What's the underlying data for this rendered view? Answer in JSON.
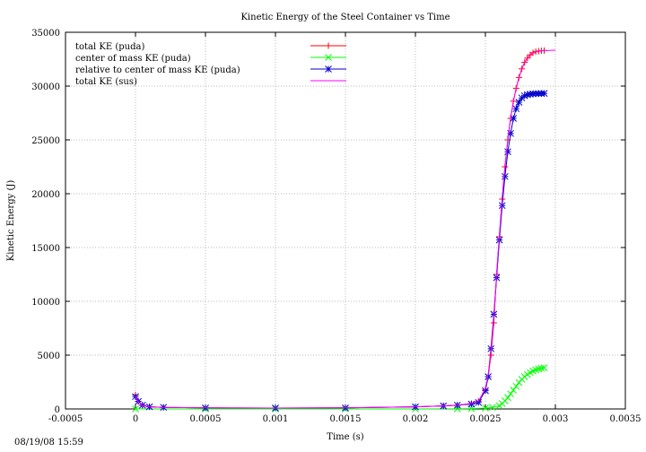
{
  "timestamp": "08/19/08 15:59",
  "chart_data": {
    "type": "line",
    "title": "Kinetic Energy of the Steel Container vs Time",
    "xlabel": "Time (s)",
    "ylabel": "Kinetic Energy (J)",
    "xlim": [
      -0.0005,
      0.0035
    ],
    "ylim": [
      0,
      35000
    ],
    "xticks": [
      "-0.0005",
      "0",
      "0.0005",
      "0.001",
      "0.0015",
      "0.002",
      "0.0025",
      "0.003",
      "0.0035"
    ],
    "yticks": [
      "0",
      "5000",
      "10000",
      "15000",
      "20000",
      "25000",
      "30000",
      "35000"
    ],
    "grid": true,
    "legend_position": "top-left",
    "series": [
      {
        "name": "total KE (puda)",
        "color": "#ff0000",
        "marker": "plus",
        "x": [
          0,
          2e-05,
          5e-05,
          0.0001,
          0.0002,
          0.0005,
          0.001,
          0.0015,
          0.002,
          0.0022,
          0.0023,
          0.0024,
          0.00245,
          0.0025,
          0.00252,
          0.00254,
          0.00256,
          0.00258,
          0.0026,
          0.00262,
          0.00264,
          0.00266,
          0.00268,
          0.0027,
          0.00272,
          0.00274,
          0.00276,
          0.00278,
          0.0028,
          0.00282,
          0.00284,
          0.00286,
          0.00288,
          0.0029,
          0.00292
        ],
        "y": [
          1300,
          700,
          350,
          200,
          150,
          100,
          80,
          100,
          200,
          280,
          350,
          500,
          700,
          1800,
          3000,
          5000,
          8000,
          12500,
          16000,
          19500,
          22500,
          25000,
          27000,
          28600,
          29800,
          30800,
          31600,
          32200,
          32600,
          32900,
          33100,
          33200,
          33250,
          33280,
          33300
        ]
      },
      {
        "name": "center of mass KE (puda)",
        "color": "#00ff00",
        "marker": "cross",
        "x": [
          0,
          0.0005,
          0.001,
          0.0015,
          0.002,
          0.0023,
          0.0024,
          0.0025,
          0.00255,
          0.0026,
          0.00262,
          0.00264,
          0.00266,
          0.00268,
          0.0027,
          0.00272,
          0.00274,
          0.00276,
          0.00278,
          0.0028,
          0.00282,
          0.00284,
          0.00286,
          0.00288,
          0.0029,
          0.00292
        ],
        "y": [
          0,
          0,
          0,
          0,
          0,
          10,
          30,
          80,
          150,
          300,
          500,
          750,
          1050,
          1400,
          1750,
          2100,
          2450,
          2750,
          3000,
          3200,
          3380,
          3520,
          3630,
          3720,
          3780,
          3820
        ]
      },
      {
        "name": "relative to center of mass KE (puda)",
        "color": "#0000cc",
        "marker": "star",
        "x": [
          0,
          2e-05,
          5e-05,
          0.0001,
          0.0002,
          0.0005,
          0.001,
          0.0015,
          0.002,
          0.0022,
          0.0023,
          0.0024,
          0.00245,
          0.0025,
          0.00252,
          0.00254,
          0.00256,
          0.00258,
          0.0026,
          0.00262,
          0.00264,
          0.00266,
          0.00268,
          0.0027,
          0.00272,
          0.00274,
          0.00276,
          0.00278,
          0.0028,
          0.00282,
          0.00284,
          0.00286,
          0.00288,
          0.0029,
          0.00292
        ],
        "y": [
          1150,
          700,
          350,
          200,
          150,
          100,
          80,
          100,
          200,
          280,
          350,
          450,
          600,
          1700,
          3000,
          5600,
          8800,
          12200,
          15700,
          18900,
          21600,
          23900,
          25600,
          27000,
          27900,
          28500,
          28900,
          29100,
          29200,
          29250,
          29280,
          29300,
          29300,
          29310,
          29320
        ]
      },
      {
        "name": "total KE (sus)",
        "color": "#ff00ff",
        "marker": "none",
        "x": [
          0,
          2e-05,
          5e-05,
          0.0001,
          0.0002,
          0.0005,
          0.001,
          0.0015,
          0.002,
          0.0022,
          0.0023,
          0.0024,
          0.00245,
          0.0025,
          0.00252,
          0.00254,
          0.00256,
          0.00258,
          0.0026,
          0.00262,
          0.00264,
          0.00266,
          0.00268,
          0.0027,
          0.00272,
          0.00274,
          0.00276,
          0.00278,
          0.0028,
          0.00282,
          0.00284,
          0.00286,
          0.00288,
          0.0029,
          0.00292,
          0.00295,
          0.003
        ],
        "y": [
          1200,
          650,
          330,
          200,
          150,
          100,
          80,
          100,
          200,
          280,
          350,
          500,
          700,
          1900,
          3200,
          5300,
          8400,
          12600,
          16200,
          19600,
          22600,
          25000,
          27000,
          28600,
          29800,
          30800,
          31600,
          32200,
          32600,
          32900,
          33100,
          33200,
          33250,
          33280,
          33300,
          33320,
          33330
        ]
      }
    ]
  }
}
